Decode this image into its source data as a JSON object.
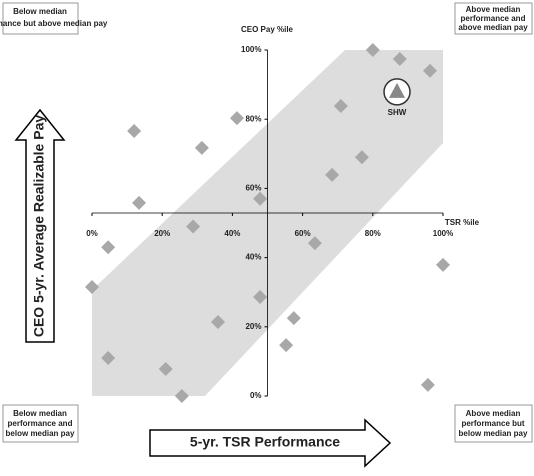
{
  "quadrants": {
    "top_left": [
      "Below median",
      "performance but above median pay"
    ],
    "top_right": [
      "Above median",
      "performance and",
      "above median pay"
    ],
    "bottom_left": [
      "Below median",
      "performance and",
      "below median pay"
    ],
    "bottom_right": [
      "Above median",
      "performance but",
      "below median pay"
    ]
  },
  "chart_data": {
    "type": "scatter",
    "y_label": "CEO Pay %ile",
    "x_label": "TSR %ile",
    "y_arrow_label": "CEO 5-yr. Average Realizable Pay",
    "x_arrow_label": "5-yr. TSR Performance",
    "xlim": [
      0,
      100
    ],
    "ylim": [
      0,
      100
    ],
    "xticks": [
      {
        "value": 0,
        "label": "0%"
      },
      {
        "value": 20,
        "label": "20%"
      },
      {
        "value": 40,
        "label": "40%"
      },
      {
        "value": 60,
        "label": "60%"
      },
      {
        "value": 80,
        "label": "80%"
      },
      {
        "value": 100,
        "label": "100%"
      }
    ],
    "yticks": [
      {
        "value": 0,
        "label": "0%"
      },
      {
        "value": 20,
        "label": "20%"
      },
      {
        "value": 40,
        "label": "40%"
      },
      {
        "value": 60,
        "label": "60%"
      },
      {
        "value": 80,
        "label": "80%"
      },
      {
        "value": 100,
        "label": "100%"
      }
    ],
    "color": "#a8a8a8",
    "x": [
      0,
      4.6,
      4.6,
      12,
      13.4,
      21,
      25.6,
      28.8,
      31.3,
      35.9,
      41.3,
      47.9,
      47.9,
      55.3,
      57.5,
      63.5,
      68.4,
      70.9,
      76.9,
      80,
      87.7,
      96.3,
      95.7,
      100
    ],
    "y": [
      31.5,
      43,
      11,
      76.6,
      55.8,
      7.8,
      0,
      49,
      71.7,
      21.4,
      80.3,
      28.6,
      57,
      14.7,
      22.5,
      44.2,
      63.9,
      83.8,
      69,
      100,
      97.4,
      94,
      3.2,
      37.9
    ],
    "highlight": {
      "name": "SHW",
      "x": 86.9,
      "y": 87.9,
      "color": "#888888"
    }
  }
}
